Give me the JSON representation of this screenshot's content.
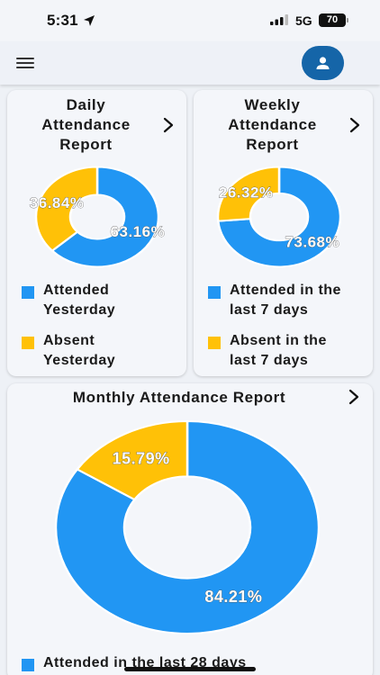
{
  "status_bar": {
    "time": "5:31",
    "network": "5G",
    "battery": "70"
  },
  "colors": {
    "attended": "#2196f3",
    "absent": "#ffc107",
    "primary": "#1565a8"
  },
  "icons": {
    "menu": "hamburger-menu-icon",
    "profile": "person-icon",
    "chevron": "chevron-right-icon",
    "location": "location-arrow-icon"
  },
  "daily": {
    "title_line1": "Daily",
    "title_line2": "Attendance",
    "title_line3": "Report",
    "attended_pct": 63.16,
    "absent_pct": 36.84,
    "attended_label": "63.16%",
    "absent_label": "36.84%",
    "legend": [
      {
        "line1": "Attended",
        "line2": "Yesterday"
      },
      {
        "line1": "Absent",
        "line2": "Yesterday"
      }
    ]
  },
  "weekly": {
    "title_line1": "Weekly",
    "title_line2": "Attendance",
    "title_line3": "Report",
    "attended_pct": 73.68,
    "absent_pct": 26.32,
    "attended_label": "73.68%",
    "absent_label": "26.32%",
    "legend": [
      {
        "line1": "Attended in the",
        "line2": "last 7 days"
      },
      {
        "line1": "Absent in the",
        "line2": "last 7 days"
      }
    ]
  },
  "monthly": {
    "title": "Monthly Attendance Report",
    "attended_pct": 84.21,
    "absent_pct": 15.79,
    "attended_label": "84.21%",
    "absent_label": "15.79%",
    "legend": [
      {
        "line1": "Attended in the last 28 days"
      }
    ]
  }
}
